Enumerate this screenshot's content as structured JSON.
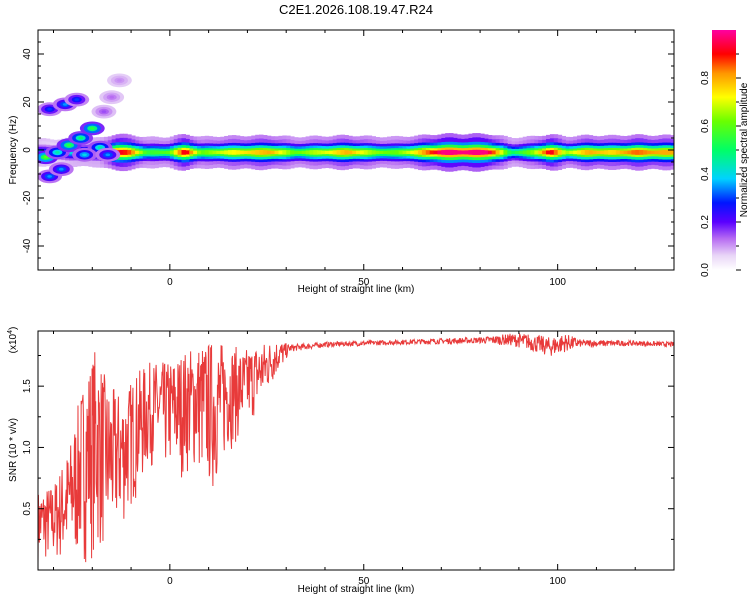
{
  "figure": {
    "title": "C2E1.2026.108.19.47.R24"
  },
  "chart_data": [
    {
      "type": "heatmap",
      "title": "",
      "xlabel": "Height of straight line (km)",
      "ylabel": "Frequency (Hz)",
      "xlim": [
        -34,
        130
      ],
      "ylim": [
        -50,
        50
      ],
      "x_ticks": [
        0,
        50,
        100
      ],
      "y_ticks": [
        -40,
        -20,
        0,
        20,
        40
      ],
      "colorbar": {
        "label": "Normalized spectral amplitude",
        "range": [
          0,
          1
        ],
        "ticks": [
          "0.0",
          "0.2",
          "0.4",
          "0.6",
          "0.8"
        ],
        "tick_values": [
          0.0,
          0.2,
          0.4,
          0.6,
          0.8
        ]
      },
      "ridge": {
        "frequency_hz": -1,
        "x_start": -34,
        "x_end": 130,
        "amplitude_profile": [
          [
            -34,
            0.35
          ],
          [
            -30,
            0.3
          ],
          [
            -26,
            0.4
          ],
          [
            -22,
            0.45
          ],
          [
            -18,
            0.45
          ],
          [
            -14,
            0.95
          ],
          [
            -10,
            0.85
          ],
          [
            -6,
            0.55
          ],
          [
            0,
            0.6
          ],
          [
            4,
            0.95
          ],
          [
            8,
            0.6
          ],
          [
            14,
            0.7
          ],
          [
            20,
            0.75
          ],
          [
            26,
            0.8
          ],
          [
            32,
            0.6
          ],
          [
            40,
            0.7
          ],
          [
            46,
            0.8
          ],
          [
            52,
            0.65
          ],
          [
            58,
            0.6
          ],
          [
            64,
            0.75
          ],
          [
            70,
            0.98
          ],
          [
            76,
            0.98
          ],
          [
            82,
            0.98
          ],
          [
            88,
            0.5
          ],
          [
            94,
            0.65
          ],
          [
            98,
            0.95
          ],
          [
            102,
            0.65
          ],
          [
            108,
            0.8
          ],
          [
            114,
            0.75
          ],
          [
            120,
            0.85
          ],
          [
            126,
            0.8
          ],
          [
            130,
            0.8
          ]
        ]
      },
      "blobs": [
        {
          "x": -32,
          "y": -3,
          "a": 0.55
        },
        {
          "x": -29,
          "y": -1,
          "a": 0.4
        },
        {
          "x": -26,
          "y": 2,
          "a": 0.5
        },
        {
          "x": -23,
          "y": 5,
          "a": 0.45
        },
        {
          "x": -20,
          "y": 9,
          "a": 0.5
        },
        {
          "x": -31,
          "y": -11,
          "a": 0.3
        },
        {
          "x": -28,
          "y": -8,
          "a": 0.3
        },
        {
          "x": -31,
          "y": 17,
          "a": 0.25
        },
        {
          "x": -27,
          "y": 19,
          "a": 0.3
        },
        {
          "x": -24,
          "y": 21,
          "a": 0.25
        },
        {
          "x": -17,
          "y": 16,
          "a": 0.1
        },
        {
          "x": -15,
          "y": 22,
          "a": 0.08
        },
        {
          "x": -13,
          "y": 29,
          "a": 0.06
        },
        {
          "x": -18,
          "y": 1,
          "a": 0.4
        },
        {
          "x": -22,
          "y": -2,
          "a": 0.35
        },
        {
          "x": -16,
          "y": -2,
          "a": 0.3
        }
      ]
    },
    {
      "type": "line",
      "title": "",
      "xlabel": "Height of straight line (km)",
      "ylabel": "SNR (10 * v/v)",
      "y_multiplier": "(x10",
      "y_multiplier_exp": "4",
      "y_multiplier_close": ")",
      "xlim": [
        -34,
        130
      ],
      "ylim": [
        0,
        1.95
      ],
      "x_ticks": [
        0,
        50,
        100
      ],
      "y_ticks": [
        0.5,
        1.0,
        1.5
      ],
      "y_tick_labels": [
        "0.5",
        "1.0",
        "1.5"
      ],
      "series": [
        {
          "color": "#e83a3a",
          "envelope": [
            [
              -34,
              0.05,
              0.65
            ],
            [
              -30,
              0.05,
              0.7
            ],
            [
              -26,
              0.05,
              1.0
            ],
            [
              -22,
              0.05,
              1.6
            ],
            [
              -19,
              0.1,
              1.85
            ],
            [
              -16,
              0.15,
              1.5
            ],
            [
              -12,
              0.35,
              1.45
            ],
            [
              -9,
              0.55,
              1.6
            ],
            [
              -5,
              0.85,
              1.7
            ],
            [
              -1,
              0.8,
              1.7
            ],
            [
              3,
              0.75,
              1.78
            ],
            [
              7,
              0.8,
              1.85
            ],
            [
              11,
              0.6,
              1.88
            ],
            [
              15,
              0.95,
              1.85
            ],
            [
              19,
              1.1,
              1.8
            ],
            [
              23,
              1.3,
              1.85
            ],
            [
              27,
              1.55,
              1.88
            ],
            [
              31,
              1.78,
              1.84
            ],
            [
              40,
              1.82,
              1.86
            ],
            [
              60,
              1.84,
              1.88
            ],
            [
              80,
              1.85,
              1.9
            ],
            [
              88,
              1.83,
              1.93
            ],
            [
              92,
              1.8,
              1.93
            ],
            [
              98,
              1.74,
              1.9
            ],
            [
              102,
              1.78,
              1.93
            ],
            [
              106,
              1.82,
              1.88
            ],
            [
              120,
              1.83,
              1.87
            ],
            [
              130,
              1.82,
              1.86
            ]
          ]
        }
      ]
    }
  ]
}
